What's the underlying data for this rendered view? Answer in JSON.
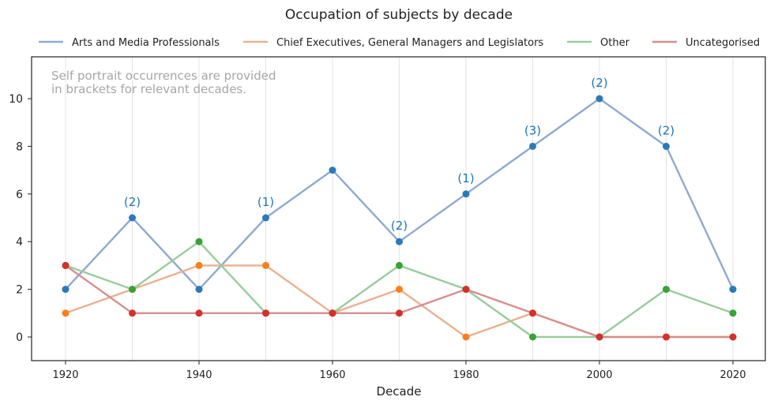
{
  "chart_data": {
    "type": "line",
    "title": "Occupation of subjects by decade",
    "xlabel": "Decade",
    "ylabel": "",
    "x": [
      1920,
      1930,
      1940,
      1950,
      1960,
      1970,
      1980,
      1990,
      2000,
      2010,
      2020
    ],
    "xticks": [
      1920,
      1940,
      1960,
      1980,
      2000,
      2020
    ],
    "yticks": [
      0,
      2,
      4,
      6,
      8,
      10
    ],
    "ylim": [
      -1,
      11.7
    ],
    "xlim": [
      1915,
      2025
    ],
    "grid": "vertical",
    "legend": "top",
    "annotation_note": "Self portrait occurrences are provided\nin brackets for relevant decades.",
    "series": [
      {
        "name": "Arts and Media Professionals",
        "line_color": "#8eaad0",
        "marker_color": "#2a7ab8",
        "values": [
          2,
          5,
          2,
          5,
          7,
          4,
          6,
          8,
          10,
          8,
          2
        ]
      },
      {
        "name": "Chief Executives, General Managers and Legislators",
        "line_color": "#e9b18f",
        "marker_color": "#fb7f1d",
        "values": [
          1,
          2,
          3,
          3,
          1,
          2,
          0,
          1,
          0,
          0,
          0
        ]
      },
      {
        "name": "Other",
        "line_color": "#98cc9c",
        "marker_color": "#36a335",
        "values": [
          3,
          2,
          4,
          1,
          1,
          3,
          2,
          0,
          0,
          2,
          1
        ]
      },
      {
        "name": "Uncategorised",
        "line_color": "#d88e8e",
        "marker_color": "#d3312d",
        "values": [
          3,
          1,
          1,
          1,
          1,
          1,
          2,
          1,
          0,
          0,
          0
        ]
      }
    ],
    "annotations": [
      {
        "x": 1930,
        "y": 5,
        "text": "(2)"
      },
      {
        "x": 1950,
        "y": 5,
        "text": "(1)"
      },
      {
        "x": 1970,
        "y": 4,
        "text": "(2)"
      },
      {
        "x": 1980,
        "y": 6,
        "text": "(1)"
      },
      {
        "x": 1990,
        "y": 8,
        "text": "(3)"
      },
      {
        "x": 2000,
        "y": 10,
        "text": "(2)"
      },
      {
        "x": 2010,
        "y": 8,
        "text": "(2)"
      }
    ],
    "annotation_color": "#1a75bb",
    "note_color": "#a6a6a6"
  }
}
